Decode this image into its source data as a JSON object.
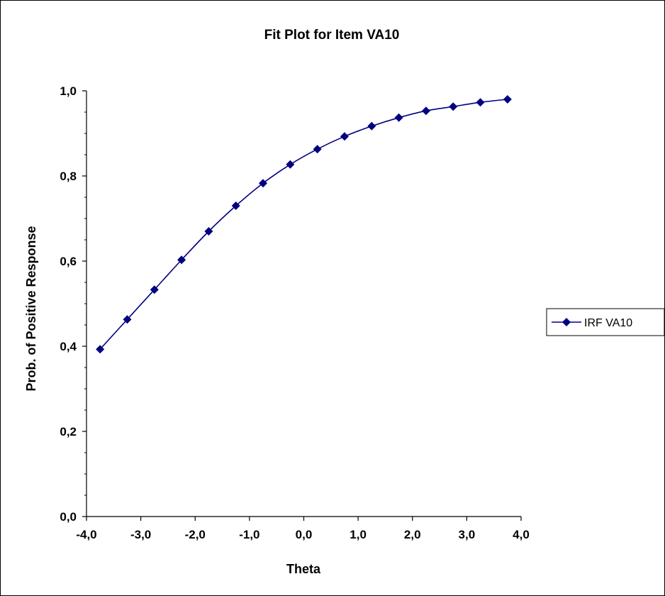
{
  "chart_data": {
    "type": "line",
    "title": "Fit Plot for Item VA10",
    "xlabel": "Theta",
    "ylabel": "Prob. of Positive Response",
    "xlim": [
      -4.0,
      4.0
    ],
    "ylim": [
      0.0,
      1.0
    ],
    "x_ticks": [
      -4.0,
      -3.0,
      -2.0,
      -1.0,
      0.0,
      1.0,
      2.0,
      3.0,
      4.0
    ],
    "x_tick_labels": [
      "-4,0",
      "-3,0",
      "-2,0",
      "-1,0",
      "0,0",
      "1,0",
      "2,0",
      "3,0",
      "4,0"
    ],
    "y_ticks": [
      0.0,
      0.2,
      0.4,
      0.6,
      0.8,
      1.0
    ],
    "y_tick_labels": [
      "0,0",
      "0,2",
      "0,4",
      "0,6",
      "0,8",
      "1,0"
    ],
    "grid": false,
    "legend_position": "right",
    "series": [
      {
        "name": "IRF VA10",
        "color": "#000080",
        "marker": "diamond",
        "x": [
          -3.75,
          -3.25,
          -2.75,
          -2.25,
          -1.75,
          -1.25,
          -0.75,
          -0.25,
          0.25,
          0.75,
          1.25,
          1.75,
          2.25,
          2.75,
          3.25,
          3.75
        ],
        "y": [
          0.393,
          0.463,
          0.533,
          0.603,
          0.67,
          0.73,
          0.783,
          0.827,
          0.863,
          0.893,
          0.917,
          0.937,
          0.953,
          0.963,
          0.973,
          0.98
        ]
      }
    ]
  }
}
